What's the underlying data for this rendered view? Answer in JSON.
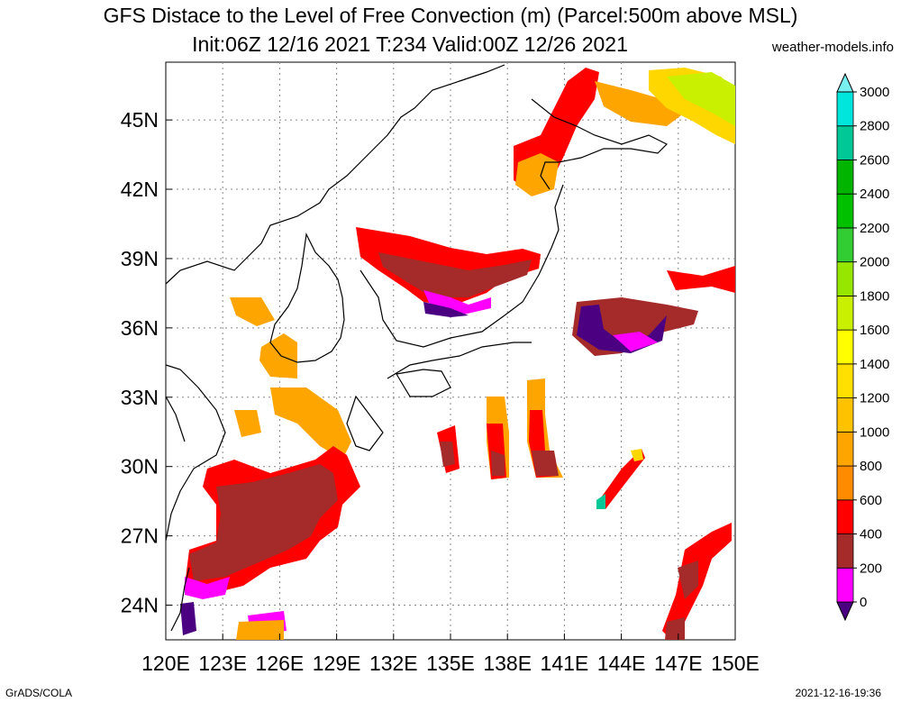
{
  "title_line1": "GFS Distace to the Level of Free Convection (m) (Parcel:500m above MSL)",
  "title_line2": "Init:06Z 12/16 2021 T:234 Valid:00Z 12/26 2021",
  "site": "weather-models.info",
  "footer_left": "GrADS/COLA",
  "footer_right": "2021-12-16-19:36",
  "map": {
    "lon_range": [
      120,
      150
    ],
    "lat_range": [
      22.5,
      47.5
    ],
    "grid": "dotted",
    "lon_ticks": [
      "120E",
      "123E",
      "126E",
      "129E",
      "132E",
      "135E",
      "138E",
      "141E",
      "144E",
      "147E",
      "150E"
    ],
    "lat_ticks": [
      "24N",
      "27N",
      "30N",
      "33N",
      "36N",
      "39N",
      "42N",
      "45N"
    ]
  },
  "colorbar": {
    "labels": [
      "0",
      "200",
      "400",
      "600",
      "800",
      "1000",
      "1200",
      "1400",
      "1600",
      "1800",
      "2000",
      "2200",
      "2400",
      "2600",
      "2800",
      "3000"
    ],
    "colors": [
      "#4b0082",
      "#ff00ff",
      "#a52a2a",
      "#ff0000",
      "#ff8c00",
      "#ffa500",
      "#ffc200",
      "#ffe000",
      "#ffff00",
      "#c8f000",
      "#96e600",
      "#32cd32",
      "#00c000",
      "#00b400",
      "#00c896",
      "#00e6dc",
      "#78f0f0"
    ]
  }
}
